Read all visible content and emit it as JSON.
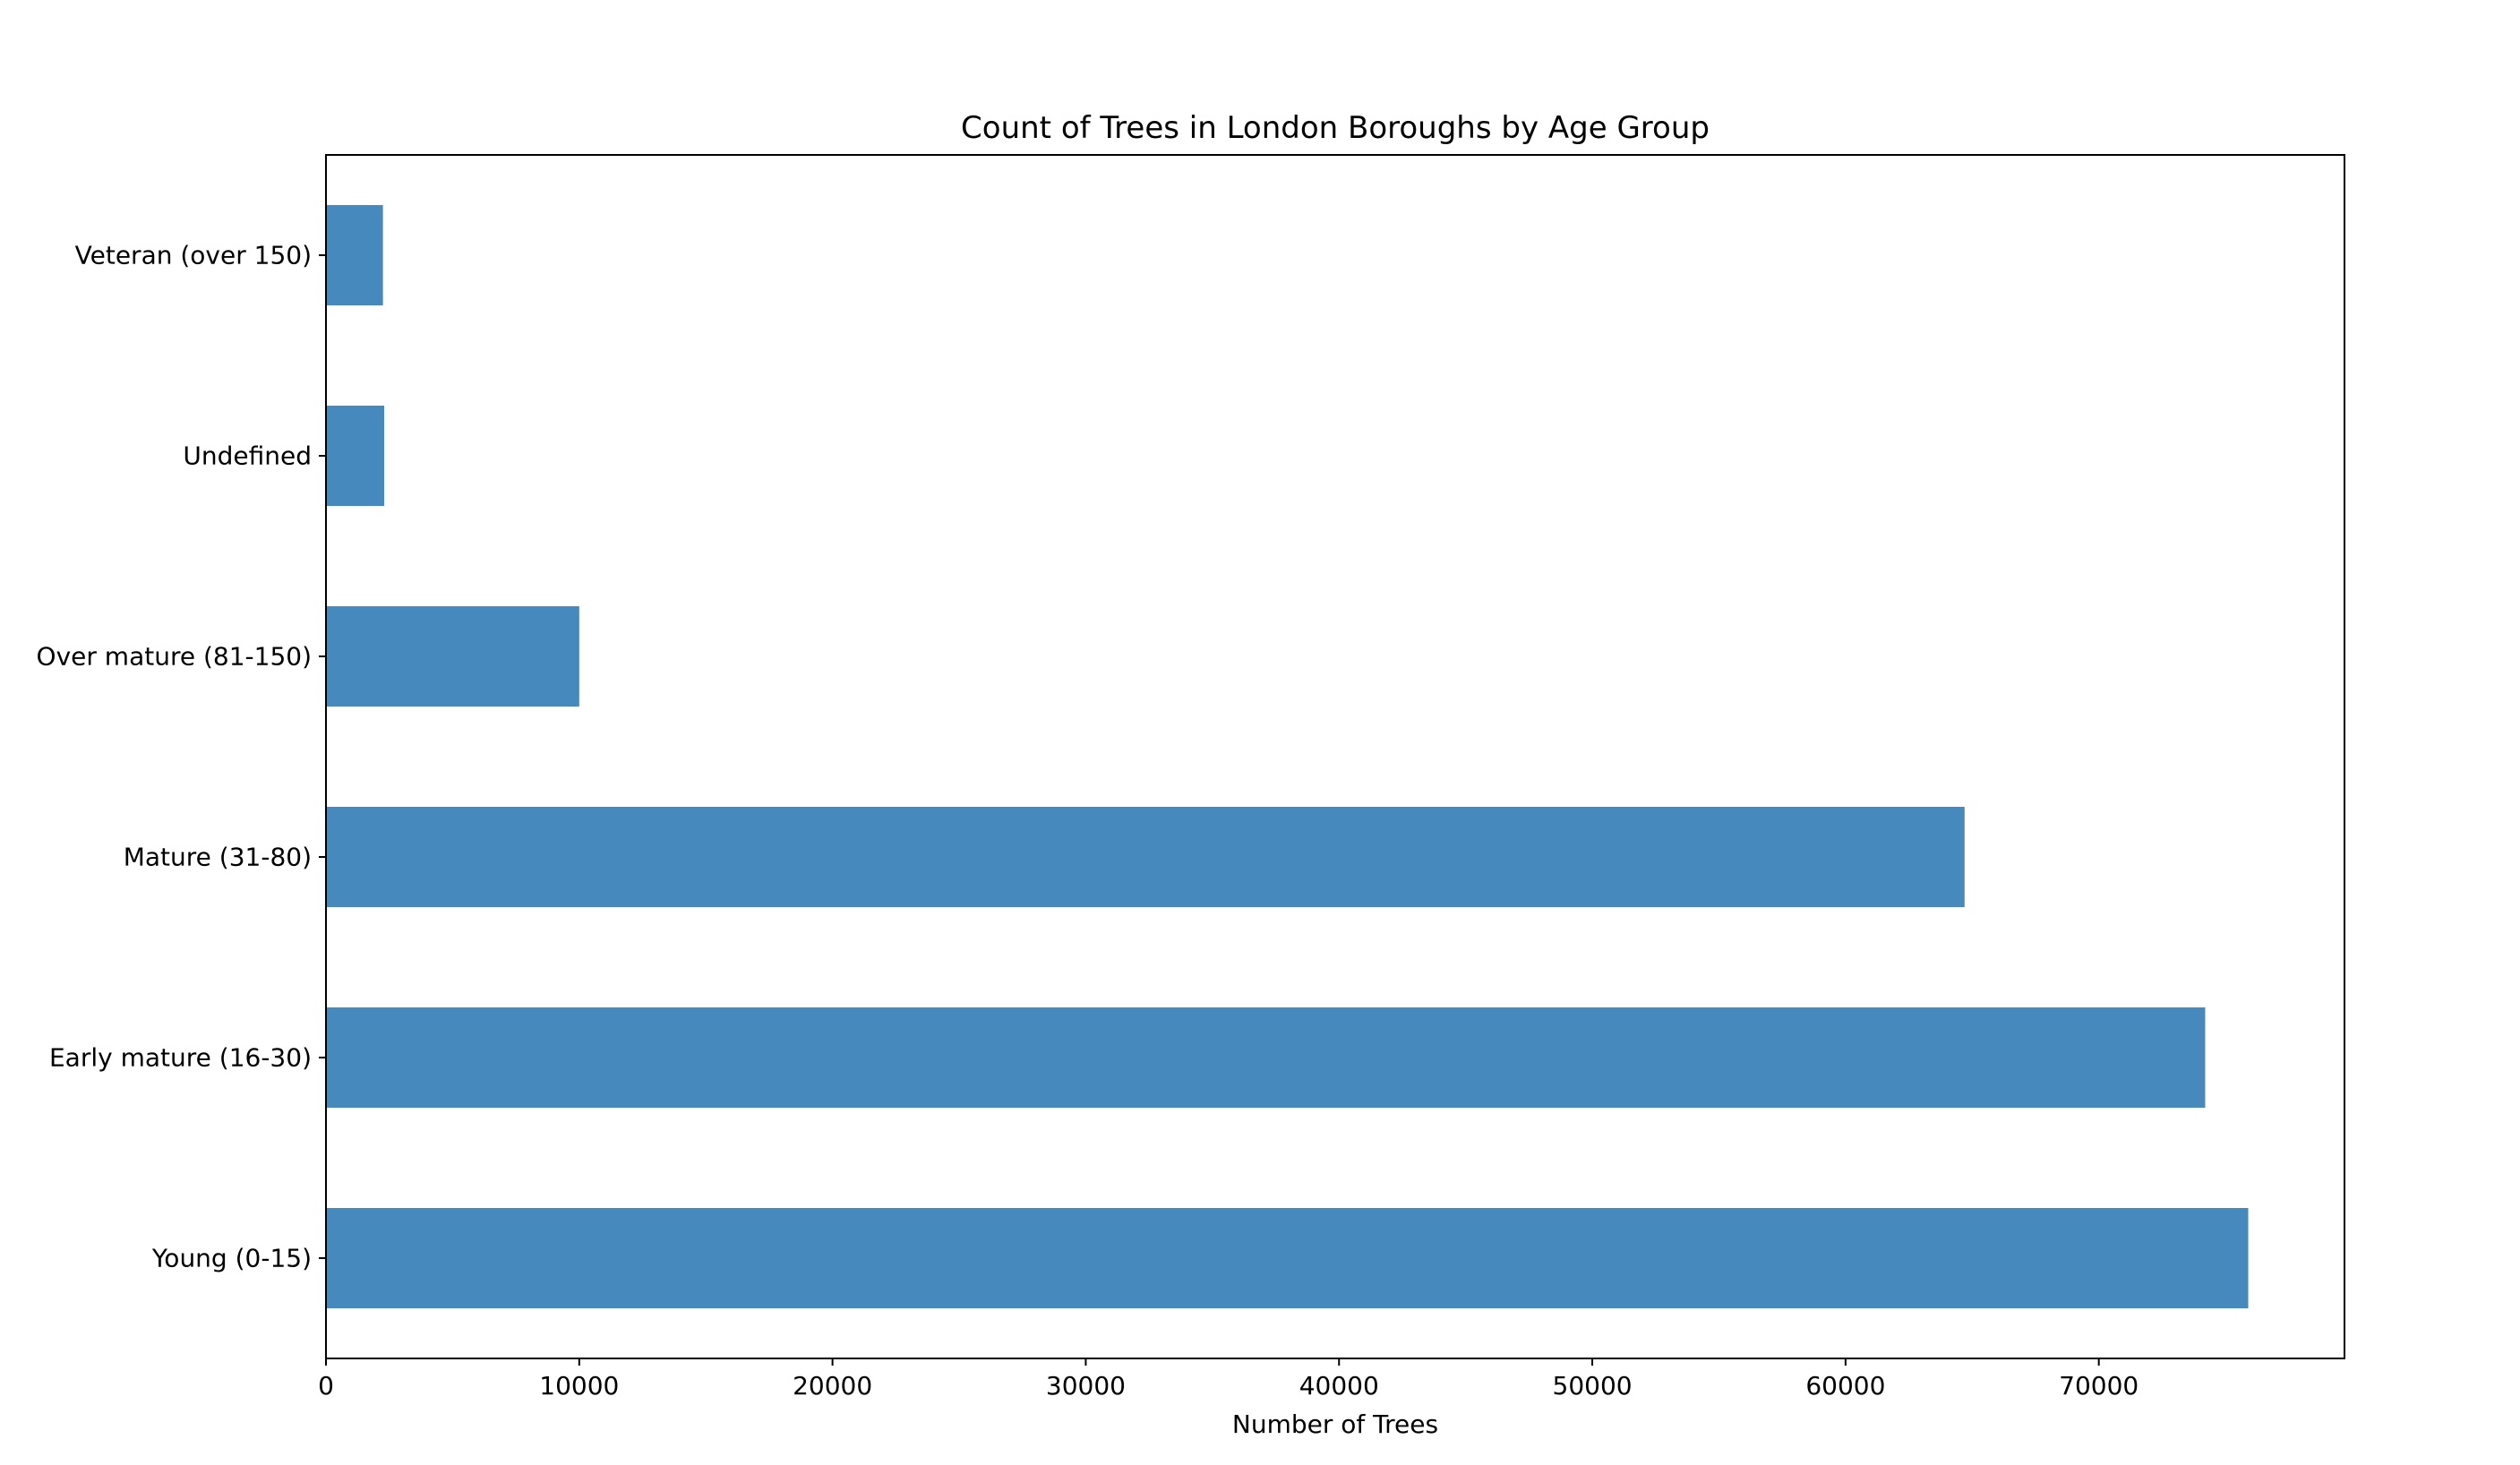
{
  "chart_data": {
    "type": "bar",
    "orientation": "horizontal",
    "title": "Count of Trees in London Boroughs by Age Group",
    "xlabel": "Number of Trees",
    "ylabel": "",
    "categories": [
      "Young (0-15)",
      "Early mature (16-30)",
      "Mature (31-80)",
      "Over mature (81-150)",
      "Undefined",
      "Veteran (over 150)"
    ],
    "values": [
      75900,
      74200,
      64700,
      10000,
      2300,
      2250
    ],
    "xlim": [
      0,
      79700
    ],
    "xticks": [
      "0",
      "10000",
      "20000",
      "30000",
      "40000",
      "50000",
      "60000",
      "70000"
    ],
    "bar_color": "#4689bd",
    "grid": false,
    "legend": "none"
  }
}
